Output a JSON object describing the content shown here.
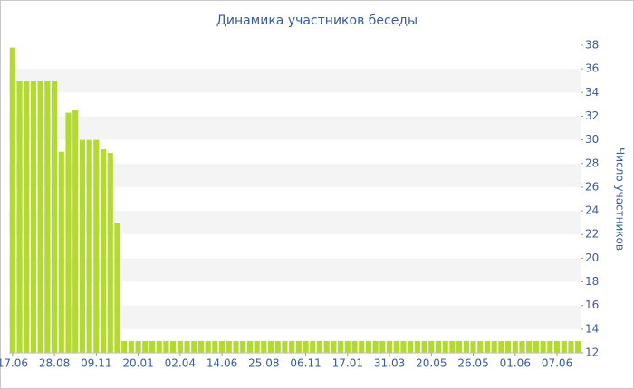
{
  "chart_data": {
    "type": "bar",
    "title": "Динамика участников беседы",
    "y_axis_label": "Число участников",
    "color": "#b3db2f",
    "categories": [
      "17.06",
      null,
      null,
      null,
      null,
      null,
      "28.08",
      null,
      null,
      null,
      null,
      null,
      "09.11",
      null,
      null,
      null,
      null,
      null,
      "20.01",
      null,
      null,
      null,
      null,
      null,
      "02.04",
      null,
      null,
      null,
      null,
      null,
      "14.06",
      null,
      null,
      null,
      null,
      null,
      "25.08",
      null,
      null,
      null,
      null,
      null,
      "06.11",
      null,
      null,
      null,
      null,
      null,
      "17.01",
      null,
      null,
      null,
      null,
      null,
      "31.03",
      null,
      null,
      null,
      null,
      null,
      "20.05",
      null,
      null,
      null,
      null,
      null,
      "26.05",
      null,
      null,
      null,
      null,
      null,
      "01.06",
      null,
      null,
      null,
      null,
      null,
      "07.06",
      null,
      null,
      null
    ],
    "values": [
      37.8,
      35,
      35,
      35,
      35,
      35,
      35,
      29,
      32.3,
      32.5,
      30,
      30,
      30,
      29.2,
      28.9,
      23,
      13,
      13,
      13,
      13,
      13,
      13,
      13,
      13,
      13,
      13,
      13,
      13,
      13,
      13,
      13,
      13,
      13,
      13,
      13,
      13,
      13,
      13,
      13,
      13,
      13,
      13,
      13,
      13,
      13,
      13,
      13,
      13,
      13,
      13,
      13,
      13,
      13,
      13,
      13,
      13,
      13,
      13,
      13,
      13,
      13,
      13,
      13,
      13,
      13,
      13,
      13,
      13,
      13,
      13,
      13,
      13,
      13,
      13,
      13,
      13,
      13,
      13,
      13,
      13,
      13,
      13
    ],
    "ylim": [
      12,
      38
    ],
    "yticks": [
      12,
      14,
      16,
      18,
      20,
      22,
      24,
      26,
      28,
      30,
      32,
      34,
      36,
      38
    ],
    "y_axis_side": "right",
    "grid": "bands"
  }
}
